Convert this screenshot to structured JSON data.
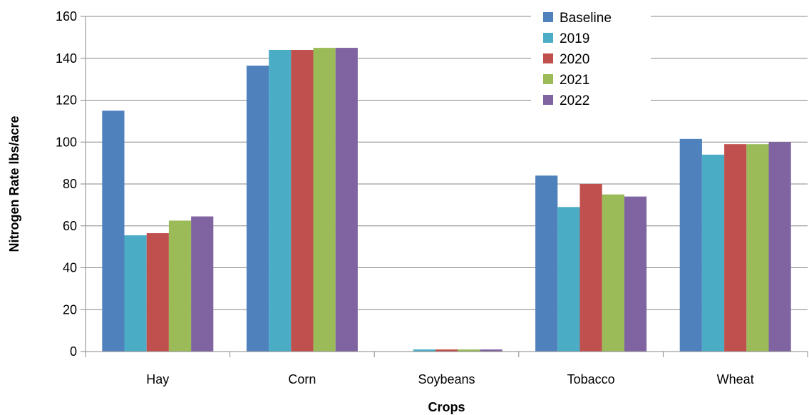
{
  "chart_data": {
    "type": "bar",
    "title": "",
    "xlabel": "Crops",
    "ylabel": "Nitrogen Rate lbs/acre",
    "categories": [
      "Hay",
      "Corn",
      "Soybeans",
      "Tobacco",
      "Wheat"
    ],
    "ylim": [
      0,
      160
    ],
    "yticks": [
      0,
      20,
      40,
      60,
      80,
      100,
      120,
      140,
      160
    ],
    "grid": true,
    "legend_position": "top-right",
    "series": [
      {
        "name": "Baseline",
        "color": "#4F81BD",
        "values": [
          115,
          136.5,
          0,
          84,
          101.5
        ]
      },
      {
        "name": "2019",
        "color": "#4BACC6",
        "values": [
          55.5,
          144,
          1,
          69,
          94
        ]
      },
      {
        "name": "2020",
        "color": "#C0504D",
        "values": [
          56.5,
          144,
          1,
          80,
          99
        ]
      },
      {
        "name": "2021",
        "color": "#9BBB59",
        "values": [
          62.5,
          145,
          1,
          75,
          99
        ]
      },
      {
        "name": "2022",
        "color": "#8064A2",
        "values": [
          64.5,
          145,
          1,
          74,
          100
        ]
      }
    ]
  }
}
